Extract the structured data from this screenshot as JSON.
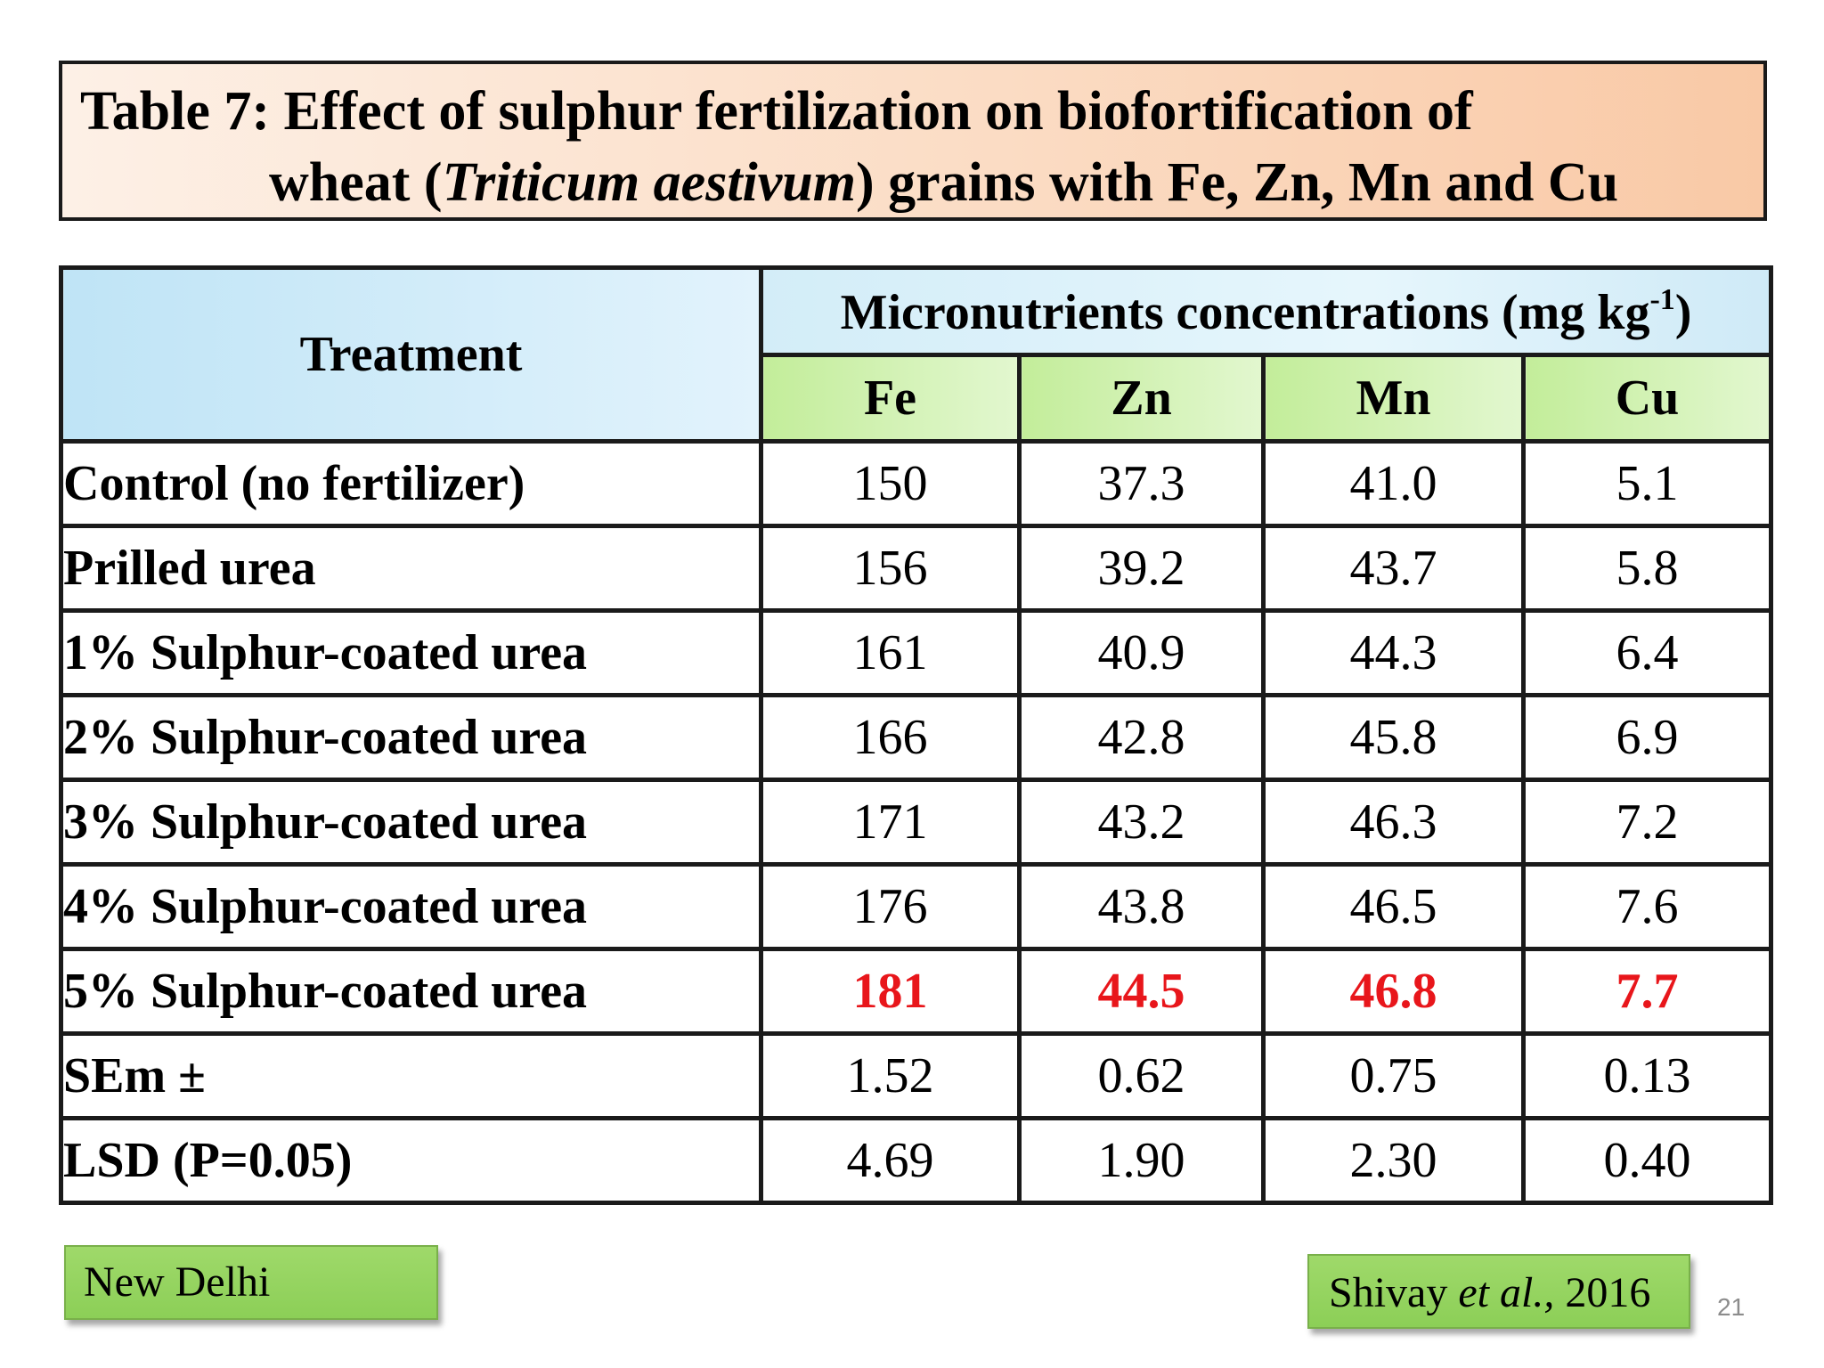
{
  "title": {
    "line1": "Table  7: Effect of sulphur fertilization on biofortification of",
    "line2_pre": "wheat (",
    "line2_italic": "Triticum aestivum",
    "line2_post": ") grains with Fe, Zn, Mn and Cu",
    "background_colors": [
      "#fdf0e6",
      "#f9c9a6"
    ]
  },
  "table": {
    "header_treatment": "Treatment",
    "header_group": "Micronutrients concentrations (mg kg",
    "header_group_sup": "-1",
    "header_group_close": ")",
    "columns": [
      "Fe",
      "Zn",
      "Mn",
      "Cu"
    ],
    "rows": [
      {
        "treatment": "Control (no fertilizer)",
        "values": [
          "150",
          "37.3",
          "41.0",
          "5.1"
        ]
      },
      {
        "treatment": "Prilled urea",
        "values": [
          "156",
          "39.2",
          "43.7",
          "5.8"
        ]
      },
      {
        "treatment": "1% Sulphur-coated urea",
        "values": [
          "161",
          "40.9",
          "44.3",
          "6.4"
        ]
      },
      {
        "treatment": "2% Sulphur-coated urea",
        "values": [
          "166",
          "42.8",
          "45.8",
          "6.9"
        ]
      },
      {
        "treatment": "3% Sulphur-coated urea",
        "values": [
          "171",
          "43.2",
          "46.3",
          "7.2"
        ]
      },
      {
        "treatment": "4% Sulphur-coated urea",
        "values": [
          "176",
          "43.8",
          "46.5",
          "7.6"
        ]
      },
      {
        "treatment": "5% Sulphur-coated urea",
        "values": [
          "181",
          "44.5",
          "46.8",
          "7.7"
        ],
        "highlight": true
      },
      {
        "treatment": "SEm ±",
        "values": [
          "1.52",
          "0.62",
          "0.75",
          "0.13"
        ]
      },
      {
        "treatment": "LSD (P=0.05)",
        "values": [
          "4.69",
          "1.90",
          "2.30",
          "0.40"
        ]
      }
    ],
    "highlight_color": "#e8161b",
    "header_blue": "#bfe4f6",
    "header_green": "#c3ed9a"
  },
  "footer": {
    "location": "New Delhi",
    "citation_author": "Shivay ",
    "citation_italic": "et al.,",
    "citation_year": " 2016",
    "page_number": "21",
    "badge_color": "#8ccf57"
  }
}
